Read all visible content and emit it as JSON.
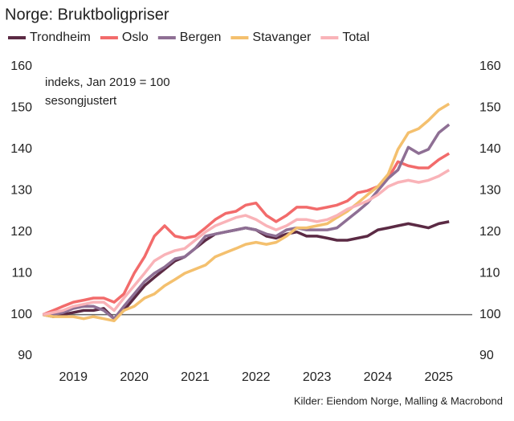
{
  "chart_data": {
    "type": "line",
    "title": "Norge: Bruktboligpriser",
    "annotations": [
      "indeks, Jan 2019 = 100",
      "sesongjustert"
    ],
    "source": "Kilder: Eiendom Norge, Malling & Macrobond",
    "x": [
      2019.0,
      2019.17,
      2019.33,
      2019.5,
      2019.67,
      2019.83,
      2020.0,
      2020.17,
      2020.33,
      2020.5,
      2020.67,
      2020.83,
      2021.0,
      2021.17,
      2021.33,
      2021.5,
      2021.67,
      2021.83,
      2022.0,
      2022.17,
      2022.33,
      2022.5,
      2022.67,
      2022.83,
      2023.0,
      2023.17,
      2023.33,
      2023.5,
      2023.67,
      2023.83,
      2024.0,
      2024.17,
      2024.33,
      2024.5,
      2024.67,
      2024.83,
      2025.0,
      2025.17,
      2025.33,
      2025.5,
      2025.67
    ],
    "xlim": [
      2018.85,
      2026.05
    ],
    "xticks": [
      {
        "value": 2019.5,
        "label": "2019"
      },
      {
        "value": 2020.5,
        "label": "2020"
      },
      {
        "value": 2021.5,
        "label": "2021"
      },
      {
        "value": 2022.5,
        "label": "2022"
      },
      {
        "value": 2023.5,
        "label": "2023"
      },
      {
        "value": 2024.5,
        "label": "2024"
      },
      {
        "value": 2025.5,
        "label": "2025"
      }
    ],
    "ylim": [
      90,
      160
    ],
    "yticks": [
      90,
      100,
      110,
      120,
      130,
      140,
      150,
      160
    ],
    "y2lim": [
      90,
      160
    ],
    "y2ticks": [
      90,
      100,
      110,
      120,
      130,
      140,
      150,
      160
    ],
    "reference_line": 100,
    "grid": false,
    "legend": "top",
    "series": [
      {
        "name": "Trondheim",
        "color": "#5b2a44",
        "values": [
          100,
          99.5,
          100,
          100.5,
          101,
          101,
          101.5,
          99,
          101,
          104,
          107,
          109,
          111,
          113,
          114,
          116,
          118,
          119.5,
          120,
          120.5,
          121,
          120.5,
          119,
          118.5,
          119.5,
          120,
          119,
          119,
          118.5,
          118,
          118,
          118.5,
          119,
          120.5,
          121,
          121.5,
          122,
          121.5,
          121,
          122,
          122.5
        ]
      },
      {
        "name": "Oslo",
        "color": "#f26b6b",
        "values": [
          100,
          101,
          102,
          103,
          103.5,
          104,
          104,
          103,
          105,
          110,
          114,
          119,
          121.5,
          119,
          118.5,
          119,
          121,
          123,
          124.5,
          125,
          126.5,
          127,
          124,
          122.5,
          124,
          126,
          126,
          125.5,
          126,
          126.5,
          127.5,
          129.5,
          130,
          131,
          133,
          137,
          136,
          135.5,
          135.5,
          137.5,
          139
        ]
      },
      {
        "name": "Bergen",
        "color": "#8e6f94",
        "values": [
          100,
          100,
          100.5,
          101.5,
          102,
          102,
          101,
          99,
          102,
          105,
          108,
          110,
          111.5,
          113.5,
          114,
          116,
          119,
          119.5,
          120,
          120.5,
          121,
          120.5,
          119.5,
          119,
          120.5,
          121,
          120.5,
          120.5,
          120.5,
          121,
          123,
          125,
          127,
          130,
          133,
          135,
          140.5,
          139,
          140,
          144,
          146
        ]
      },
      {
        "name": "Stavanger",
        "color": "#f4c06e",
        "values": [
          100,
          99.5,
          99.5,
          99.5,
          99,
          99.5,
          99,
          98.5,
          101,
          102,
          104,
          105,
          107,
          108.5,
          110,
          111,
          112,
          114,
          115,
          116,
          117,
          117.5,
          117,
          117.5,
          119,
          121,
          121,
          121.5,
          122,
          123.5,
          125,
          127,
          129,
          131,
          134,
          140,
          144,
          145,
          147,
          149.5,
          151
        ]
      },
      {
        "name": "Total",
        "color": "#f9b3b8",
        "values": [
          100,
          100.5,
          101,
          102,
          102.5,
          103,
          103,
          101,
          104,
          107,
          110,
          113,
          114.5,
          115.5,
          116,
          118,
          120,
          121.5,
          122.5,
          123.5,
          124,
          123,
          121.5,
          120.5,
          121.5,
          123,
          123,
          122.5,
          123,
          124,
          125.5,
          126.5,
          127.5,
          129,
          131,
          132,
          132.5,
          132,
          132.5,
          133.5,
          135
        ]
      }
    ]
  }
}
